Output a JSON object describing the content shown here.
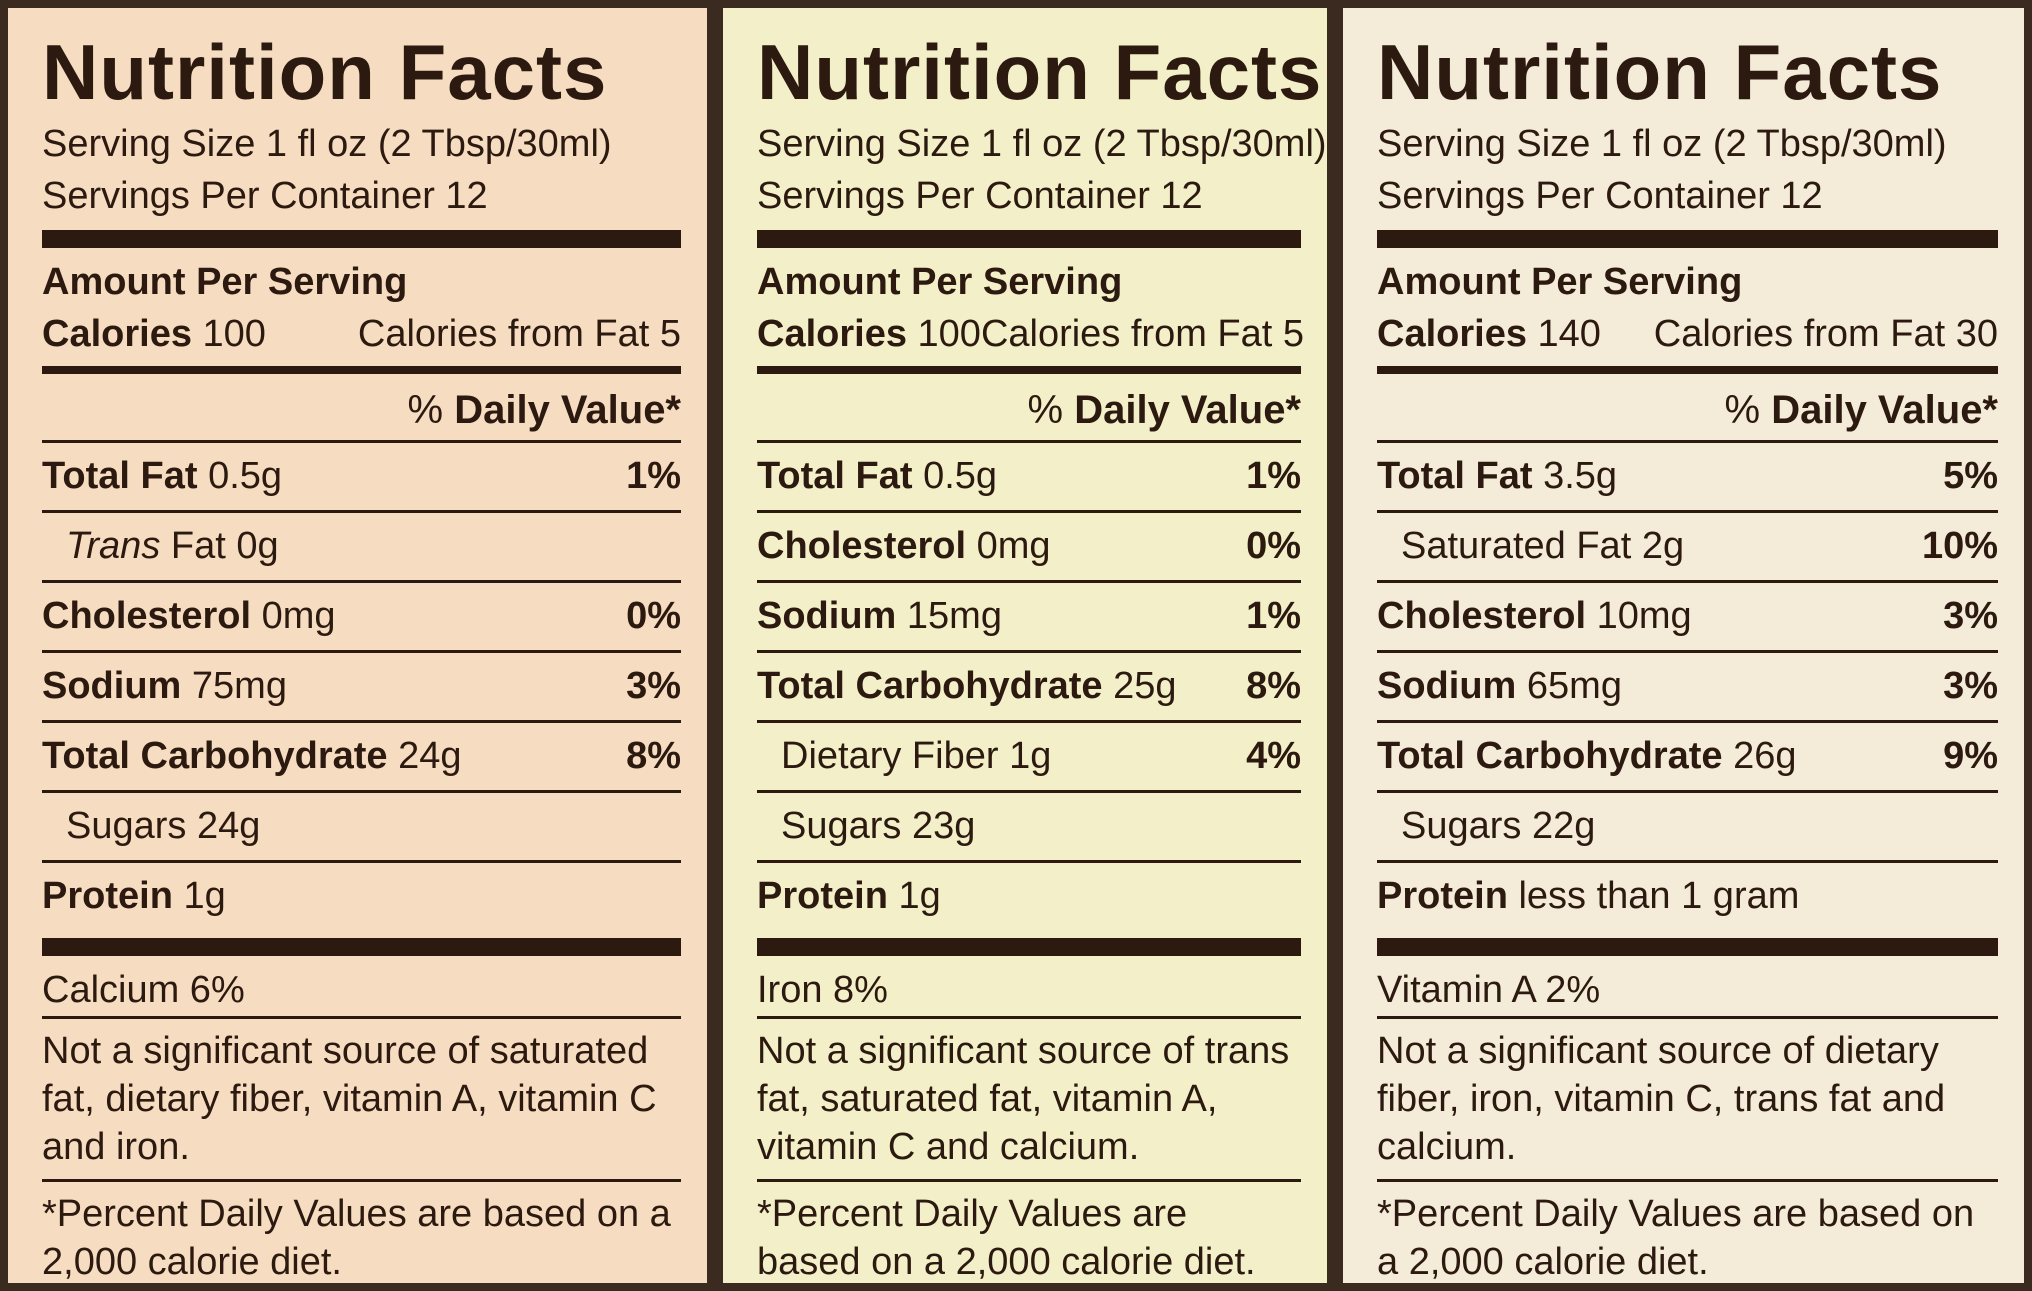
{
  "panels": [
    {
      "title": "Nutrition Facts",
      "serving_size": "Serving Size 1 fl oz (2 Tbsp/30ml)",
      "servings": "Servings Per Container 12",
      "amount_per_serving": "Amount Per Serving",
      "calories_label": "Calories",
      "calories_value": "100",
      "calories_fat": "Calories from Fat 5",
      "dv_prefix": "%",
      "dv_header": "Daily Value*",
      "rows": [
        {
          "name": "Total Fat",
          "amount": "0.5g",
          "dv": "1%",
          "style": "bold",
          "indent": false
        },
        {
          "name": "Trans",
          "amount": "Fat 0g",
          "style": "italic",
          "indent": true
        },
        {
          "name": "Cholesterol",
          "amount": "0mg",
          "dv": "0%",
          "style": "bold",
          "indent": false
        },
        {
          "name": "Sodium",
          "amount": "75mg",
          "dv": "3%",
          "style": "bold",
          "indent": false
        },
        {
          "name": "Total Carbohydrate",
          "amount": "24g",
          "dv": "8%",
          "style": "bold",
          "indent": false
        },
        {
          "name": "Sugars",
          "amount": "24g",
          "style": "plain",
          "indent": true
        },
        {
          "name": "Protein",
          "amount": "1g",
          "style": "bold",
          "indent": false
        }
      ],
      "vitamins": "Calcium 6%",
      "note": "Not a significant source of saturated fat, dietary fiber, vitamin A, vitamin C and iron.",
      "footnote": "*Percent Daily Values are based on a 2,000 calorie diet.",
      "background": "#f6dcc0"
    },
    {
      "title": "Nutrition Facts",
      "serving_size": "Serving Size 1 fl oz (2 Tbsp/30ml)",
      "servings": "Servings Per Container 12",
      "amount_per_serving": "Amount Per Serving",
      "calories_label": "Calories",
      "calories_value": "100",
      "calories_fat": "Calories from Fat 5",
      "dv_prefix": "%",
      "dv_header": "Daily Value*",
      "rows": [
        {
          "name": "Total Fat",
          "amount": "0.5g",
          "dv": "1%",
          "style": "bold",
          "indent": false
        },
        {
          "name": "Cholesterol",
          "amount": "0mg",
          "dv": "0%",
          "style": "bold",
          "indent": false
        },
        {
          "name": "Sodium",
          "amount": "15mg",
          "dv": "1%",
          "style": "bold",
          "indent": false
        },
        {
          "name": "Total Carbohydrate",
          "amount": "25g",
          "dv": "8%",
          "style": "bold",
          "indent": false
        },
        {
          "name": "Dietary Fiber",
          "amount": "1g",
          "dv": "4%",
          "style": "plain",
          "indent": true
        },
        {
          "name": "Sugars",
          "amount": "23g",
          "style": "plain",
          "indent": true
        },
        {
          "name": "Protein",
          "amount": "1g",
          "style": "bold",
          "indent": false
        }
      ],
      "vitamins": "Iron 8%",
      "note": "Not a significant source of trans fat, saturated fat, vitamin A, vitamin C and calcium.",
      "footnote": "*Percent Daily Values are based on a 2,000 calorie diet.",
      "background": "#f3f0c9"
    },
    {
      "title": "Nutrition Facts",
      "serving_size": "Serving Size 1 fl oz (2 Tbsp/30ml)",
      "servings": "Servings Per Container 12",
      "amount_per_serving": "Amount Per Serving",
      "calories_label": "Calories",
      "calories_value": "140",
      "calories_fat": "Calories from Fat 30",
      "dv_prefix": "%",
      "dv_header": "Daily Value*",
      "rows": [
        {
          "name": "Total Fat",
          "amount": "3.5g",
          "dv": "5%",
          "style": "bold",
          "indent": false
        },
        {
          "name": "Saturated Fat",
          "amount": "2g",
          "dv": "10%",
          "style": "plain",
          "indent": true
        },
        {
          "name": "Cholesterol",
          "amount": "10mg",
          "dv": "3%",
          "style": "bold",
          "indent": false
        },
        {
          "name": "Sodium",
          "amount": "65mg",
          "dv": "3%",
          "style": "bold",
          "indent": false
        },
        {
          "name": "Total Carbohydrate",
          "amount": "26g",
          "dv": "9%",
          "style": "bold",
          "indent": false
        },
        {
          "name": "Sugars",
          "amount": "22g",
          "style": "plain",
          "indent": true
        },
        {
          "name": "Protein",
          "amount": "less than 1 gram",
          "style": "bold",
          "indent": false
        }
      ],
      "vitamins": "Vitamin A 2%",
      "note": "Not a significant source of dietary fiber, iron, vitamin C, trans fat and calcium.",
      "footnote": "*Percent Daily Values are based on a 2,000 calorie diet.",
      "background": "#f4ebd9"
    }
  ]
}
